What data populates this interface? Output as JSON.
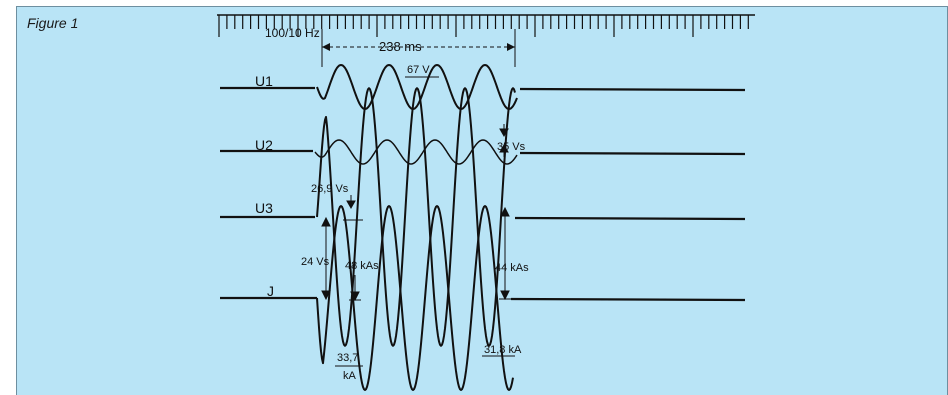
{
  "caption": "Figure 1",
  "timebase": {
    "label": "100/10 Hz",
    "interval": "238 ms"
  },
  "traces": [
    {
      "name": "U1",
      "amplitude_label": "67 V"
    },
    {
      "name": "U2",
      "amplitude_label": "35 Vs"
    },
    {
      "name": "U3",
      "amplitude_label": "26,9 Vs",
      "second_label": "24 Vs"
    },
    {
      "name": "J",
      "amplitude_label": "48 kAs",
      "second_label": "44 kAs"
    }
  ],
  "current_labels": {
    "first_top": "33,7",
    "first_unit": "kA",
    "last": "31,8 kA"
  },
  "colors": {
    "background": "#b9e4f6",
    "ink": "#111111"
  }
}
